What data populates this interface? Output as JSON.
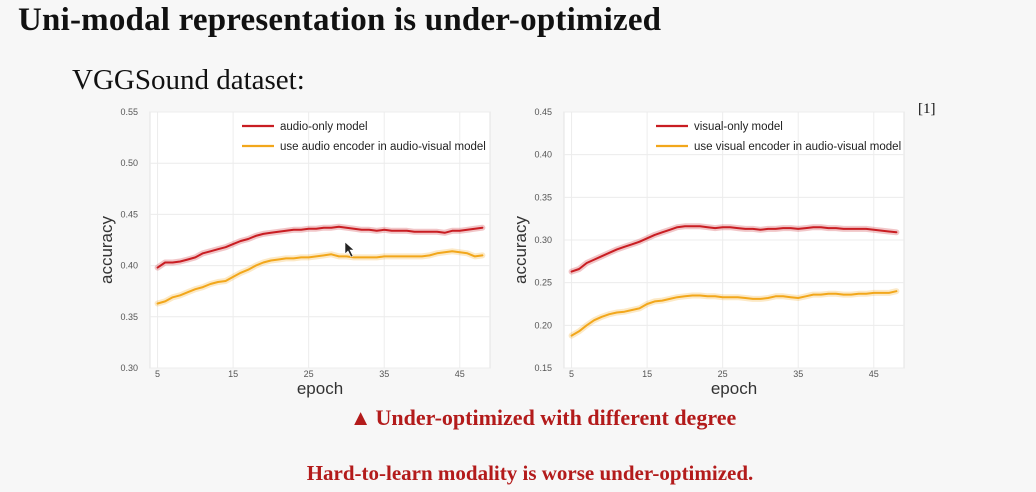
{
  "slide": {
    "title": "Uni-modal representation is under-optimized",
    "subtitle": "VGGSound dataset:",
    "reference": "[1]",
    "note_icon": "triangle-up-icon",
    "note_symbol": "▲",
    "note1": "Under-optimized with different degree",
    "note2": "Hard-to-learn modality is worse under-optimized."
  },
  "colors": {
    "red_series": "#c91d22",
    "orange_series": "#f2a71b",
    "note": "#b31b1b"
  },
  "chart_data": [
    {
      "type": "line",
      "xlabel": "epoch",
      "ylabel": "accuracy",
      "xlim": [
        4,
        49
      ],
      "ylim": [
        0.3,
        0.55
      ],
      "xticks": [
        5,
        15,
        25,
        35,
        45
      ],
      "yticks": [
        "0.30",
        "0.35",
        "0.40",
        "0.45",
        "0.50",
        "0.55"
      ],
      "legend_position": "top-center",
      "series": [
        {
          "name": "audio-only model",
          "color": "#c91d22",
          "x": [
            5,
            6,
            7,
            8,
            9,
            10,
            11,
            12,
            13,
            14,
            15,
            16,
            17,
            18,
            19,
            20,
            21,
            22,
            23,
            24,
            25,
            26,
            27,
            28,
            29,
            30,
            31,
            32,
            33,
            34,
            35,
            36,
            37,
            38,
            39,
            40,
            41,
            42,
            43,
            44,
            45,
            46,
            47,
            48
          ],
          "y": [
            0.398,
            0.403,
            0.403,
            0.404,
            0.406,
            0.408,
            0.412,
            0.414,
            0.416,
            0.418,
            0.421,
            0.424,
            0.426,
            0.429,
            0.431,
            0.432,
            0.433,
            0.434,
            0.435,
            0.435,
            0.436,
            0.436,
            0.437,
            0.437,
            0.438,
            0.437,
            0.436,
            0.435,
            0.435,
            0.434,
            0.435,
            0.434,
            0.434,
            0.434,
            0.433,
            0.433,
            0.433,
            0.433,
            0.432,
            0.434,
            0.434,
            0.435,
            0.436,
            0.437
          ]
        },
        {
          "name": "use audio encoder in audio-visual model",
          "color": "#f2a71b",
          "x": [
            5,
            6,
            7,
            8,
            9,
            10,
            11,
            12,
            13,
            14,
            15,
            16,
            17,
            18,
            19,
            20,
            21,
            22,
            23,
            24,
            25,
            26,
            27,
            28,
            29,
            30,
            31,
            32,
            33,
            34,
            35,
            36,
            37,
            38,
            39,
            40,
            41,
            42,
            43,
            44,
            45,
            46,
            47,
            48
          ],
          "y": [
            0.363,
            0.365,
            0.369,
            0.371,
            0.374,
            0.377,
            0.379,
            0.382,
            0.384,
            0.385,
            0.389,
            0.393,
            0.396,
            0.4,
            0.403,
            0.405,
            0.406,
            0.407,
            0.407,
            0.408,
            0.408,
            0.409,
            0.41,
            0.411,
            0.409,
            0.409,
            0.408,
            0.408,
            0.408,
            0.408,
            0.409,
            0.409,
            0.409,
            0.409,
            0.409,
            0.409,
            0.41,
            0.412,
            0.413,
            0.414,
            0.413,
            0.412,
            0.409,
            0.41
          ]
        }
      ]
    },
    {
      "type": "line",
      "xlabel": "epoch",
      "ylabel": "accuracy",
      "xlim": [
        4,
        49
      ],
      "ylim": [
        0.15,
        0.45
      ],
      "xticks": [
        5,
        15,
        25,
        35,
        45
      ],
      "yticks": [
        "0.15",
        "0.20",
        "0.25",
        "0.30",
        "0.35",
        "0.40",
        "0.45"
      ],
      "legend_position": "top-center",
      "series": [
        {
          "name": "visual-only model",
          "color": "#c91d22",
          "x": [
            5,
            6,
            7,
            8,
            9,
            10,
            11,
            12,
            13,
            14,
            15,
            16,
            17,
            18,
            19,
            20,
            21,
            22,
            23,
            24,
            25,
            26,
            27,
            28,
            29,
            30,
            31,
            32,
            33,
            34,
            35,
            36,
            37,
            38,
            39,
            40,
            41,
            42,
            43,
            44,
            45,
            46,
            47,
            48
          ],
          "y": [
            0.263,
            0.266,
            0.273,
            0.277,
            0.281,
            0.285,
            0.289,
            0.292,
            0.295,
            0.298,
            0.302,
            0.306,
            0.309,
            0.312,
            0.315,
            0.316,
            0.316,
            0.316,
            0.315,
            0.314,
            0.315,
            0.315,
            0.314,
            0.313,
            0.313,
            0.312,
            0.313,
            0.313,
            0.314,
            0.314,
            0.313,
            0.314,
            0.315,
            0.315,
            0.314,
            0.314,
            0.313,
            0.313,
            0.313,
            0.313,
            0.312,
            0.311,
            0.31,
            0.309
          ]
        },
        {
          "name": "use visual encoder in audio-visual model",
          "color": "#f2a71b",
          "x": [
            5,
            6,
            7,
            8,
            9,
            10,
            11,
            12,
            13,
            14,
            15,
            16,
            17,
            18,
            19,
            20,
            21,
            22,
            23,
            24,
            25,
            26,
            27,
            28,
            29,
            30,
            31,
            32,
            33,
            34,
            35,
            36,
            37,
            38,
            39,
            40,
            41,
            42,
            43,
            44,
            45,
            46,
            47,
            48
          ],
          "y": [
            0.188,
            0.193,
            0.2,
            0.206,
            0.21,
            0.213,
            0.215,
            0.216,
            0.218,
            0.22,
            0.225,
            0.228,
            0.229,
            0.231,
            0.233,
            0.234,
            0.235,
            0.235,
            0.234,
            0.234,
            0.233,
            0.233,
            0.233,
            0.232,
            0.231,
            0.231,
            0.232,
            0.234,
            0.234,
            0.233,
            0.232,
            0.234,
            0.236,
            0.236,
            0.237,
            0.237,
            0.236,
            0.236,
            0.237,
            0.237,
            0.238,
            0.238,
            0.238,
            0.24
          ]
        }
      ]
    }
  ]
}
